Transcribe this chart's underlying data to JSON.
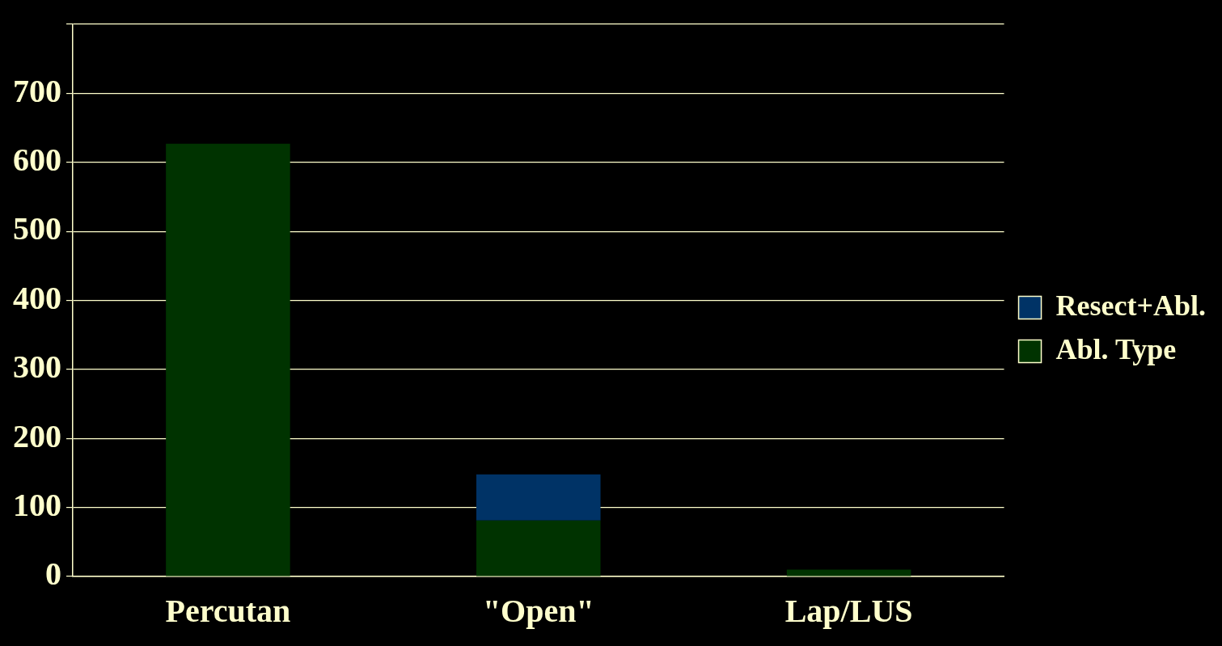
{
  "chart_data": {
    "type": "bar",
    "stacked": true,
    "categories": [
      "Percutan",
      "\"Open\"",
      "Lap/LUS"
    ],
    "series": [
      {
        "name": "Abl. Type",
        "color": "#003300",
        "values": [
          627,
          81,
          10
        ]
      },
      {
        "name": "Resect+Abl.",
        "color": "#003366",
        "values": [
          null,
          67,
          null
        ]
      }
    ],
    "ylim": [
      0,
      800
    ],
    "yticks": [
      0,
      100,
      200,
      300,
      400,
      500,
      600,
      700,
      {
        "value": 800,
        "label": null
      }
    ],
    "grid": "y",
    "legend": "right"
  }
}
